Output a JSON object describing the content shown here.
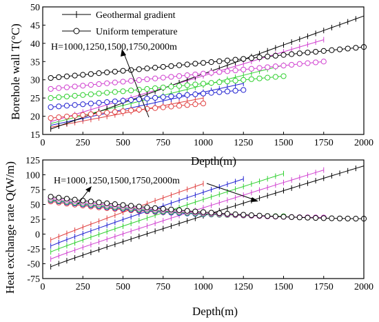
{
  "chart_data": [
    {
      "type": "line",
      "ylabel": "Borehole wall T(°C)",
      "xlabel": "Depth(m)",
      "xlim": [
        0,
        2000
      ],
      "ylim": [
        15,
        50
      ],
      "xticks": [
        "0",
        "250",
        "500",
        "750",
        "1000",
        "1250",
        "1500",
        "1750",
        "2000"
      ],
      "yticks": [
        "15",
        "20",
        "25",
        "30",
        "35",
        "40",
        "45",
        "50"
      ],
      "legend_placement": "top-left",
      "annotation": "H=1000,1250,1500,1750,2000m",
      "grid": false,
      "series": [
        {
          "name": "Geothermal gradient",
          "marker": "plus",
          "color": "#e04040",
          "lengths": 1000,
          "x": [
            50,
            1000
          ],
          "y": [
            17.0,
            25.0
          ]
        },
        {
          "name": "",
          "group": "Geothermal gradient",
          "marker": "plus",
          "color": "#2020d0",
          "x": [
            50,
            1250
          ],
          "y": [
            17.5,
            29.0
          ]
        },
        {
          "name": "",
          "group": "Geothermal gradient",
          "marker": "plus",
          "color": "#30d030",
          "x": [
            50,
            1500
          ],
          "y": [
            18.0,
            34.0
          ]
        },
        {
          "name": "",
          "group": "Geothermal gradient",
          "marker": "plus",
          "color": "#d040d0",
          "x": [
            50,
            1750
          ],
          "y": [
            18.5,
            41.0
          ]
        },
        {
          "name": "",
          "group": "Geothermal gradient",
          "marker": "plus",
          "color": "#000000",
          "x": [
            50,
            2000
          ],
          "y": [
            16.5,
            47.5
          ]
        },
        {
          "name": "Uniform temperature",
          "marker": "circle",
          "color": "#e04040",
          "x": [
            50,
            1000
          ],
          "y": [
            19.5,
            23.5
          ]
        },
        {
          "name": "",
          "group": "Uniform temperature",
          "marker": "circle",
          "color": "#2020d0",
          "x": [
            50,
            1250
          ],
          "y": [
            22.5,
            27.2
          ]
        },
        {
          "name": "",
          "group": "Uniform temperature",
          "marker": "circle",
          "color": "#30d030",
          "x": [
            50,
            1500
          ],
          "y": [
            25.0,
            31.0
          ]
        },
        {
          "name": "",
          "group": "Uniform temperature",
          "marker": "circle",
          "color": "#d040d0",
          "x": [
            50,
            1750
          ],
          "y": [
            27.5,
            35.0
          ]
        },
        {
          "name": "",
          "group": "Uniform temperature",
          "marker": "circle",
          "color": "#000000",
          "x": [
            50,
            2000
          ],
          "y": [
            30.5,
            39.0
          ]
        }
      ]
    },
    {
      "type": "line",
      "ylabel": "Heat exchange rate Q(W/m)",
      "xlabel": "Depth(m)",
      "xlim": [
        0,
        2000
      ],
      "ylim": [
        -75,
        125
      ],
      "xticks": [
        "0",
        "250",
        "500",
        "750",
        "1000",
        "1250",
        "1500",
        "1750",
        "2000"
      ],
      "yticks": [
        "-75",
        "-50",
        "-25",
        "0",
        "25",
        "50",
        "75",
        "100",
        "125"
      ],
      "annotation": "H=1000,1250,1500,1750,2000m",
      "grid": false,
      "series": [
        {
          "group": "Geothermal gradient",
          "marker": "plus",
          "color": "#e04040",
          "x": [
            50,
            1000
          ],
          "y": [
            -10,
            85
          ],
          "curve": 0.95
        },
        {
          "group": "Geothermal gradient",
          "marker": "plus",
          "color": "#2020d0",
          "x": [
            50,
            1250
          ],
          "y": [
            -20,
            93
          ],
          "curve": 0.95
        },
        {
          "group": "Geothermal gradient",
          "marker": "plus",
          "color": "#30d030",
          "x": [
            50,
            1500
          ],
          "y": [
            -30,
            102
          ],
          "curve": 0.95
        },
        {
          "group": "Geothermal gradient",
          "marker": "plus",
          "color": "#d040d0",
          "x": [
            50,
            1750
          ],
          "y": [
            -42,
            108
          ],
          "curve": 0.95
        },
        {
          "group": "Geothermal gradient",
          "marker": "plus",
          "color": "#000000",
          "x": [
            50,
            2000
          ],
          "y": [
            -55,
            115
          ],
          "curve": 0.95
        },
        {
          "group": "Uniform temperature",
          "marker": "circle",
          "color": "#e04040",
          "x": [
            50,
            1000
          ],
          "y": [
            55,
            35
          ],
          "curve": -1
        },
        {
          "group": "Uniform temperature",
          "marker": "circle",
          "color": "#2020d0",
          "x": [
            50,
            1250
          ],
          "y": [
            57,
            32
          ],
          "curve": -1
        },
        {
          "group": "Uniform temperature",
          "marker": "circle",
          "color": "#30d030",
          "x": [
            50,
            1500
          ],
          "y": [
            58,
            30
          ],
          "curve": -1
        },
        {
          "group": "Uniform temperature",
          "marker": "circle",
          "color": "#d040d0",
          "x": [
            50,
            1750
          ],
          "y": [
            60,
            28
          ],
          "curve": -1
        },
        {
          "group": "Uniform temperature",
          "marker": "circle",
          "color": "#000000",
          "x": [
            50,
            2000
          ],
          "y": [
            63,
            26
          ],
          "curve": -1
        }
      ]
    }
  ]
}
